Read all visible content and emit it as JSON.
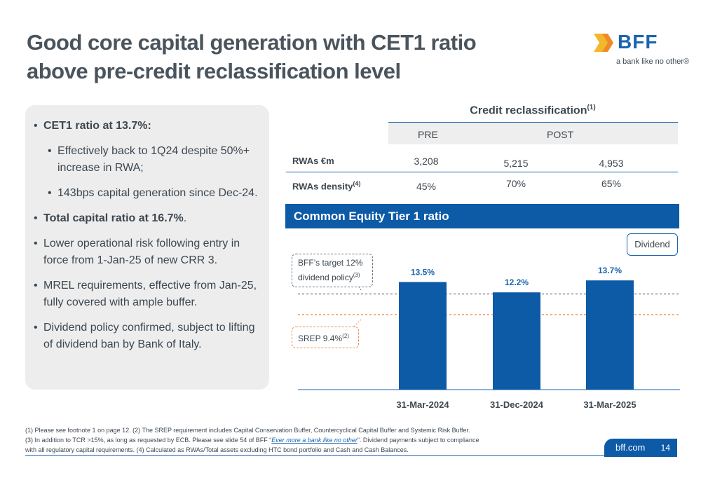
{
  "title_line1": "Good core capital generation with CET1 ratio",
  "title_line2": "above pre-credit reclassification level",
  "logo": {
    "brand": "BFF",
    "tagline": "a bank like no other®"
  },
  "bullets": {
    "b1": "CET1 ratio at 13.7%:",
    "b1a": "Effectively back to 1Q24 despite 50%+ increase in RWA;",
    "b1b": "143bps capital generation since Dec-24.",
    "b2_bold": "Total capital ratio at 16.7%",
    "b2_tail": ".",
    "b3": "Lower operational risk following entry in force from 1-Jan-25 of new CRR 3.",
    "b4": "MREL requirements, effective from Jan-25, fully covered with ample buffer.",
    "b5": "Dividend policy confirmed, subject to lifting of dividend ban by Bank of Italy."
  },
  "table": {
    "title": "Credit reclassification",
    "title_note": "(1)",
    "col_pre": "PRE",
    "col_post": "POST",
    "row1_label": "RWAs €m",
    "row1_values": [
      "3,208",
      "5,215",
      "4,953"
    ],
    "row2_label": "RWAs density",
    "row2_note": "(4)",
    "row2_values": [
      "45%",
      "70%",
      "65%"
    ]
  },
  "section_band": "Common Equity Tier 1 ratio",
  "legend_label": "Dividend",
  "callouts": {
    "target_text": "BFF’s target 12% dividend policy",
    "target_note": "(3)",
    "srep_text": "SREP 9.4%",
    "srep_note": "(2)"
  },
  "chart_data": {
    "type": "bar",
    "title": "Common Equity Tier 1 ratio",
    "categories": [
      "31-Mar-2024",
      "31-Dec-2024",
      "31-Mar-2025"
    ],
    "values": [
      13.5,
      12.2,
      13.7
    ],
    "value_labels": [
      "13.5%",
      "12.2%",
      "13.7%"
    ],
    "reference_lines": [
      {
        "label": "BFF’s target 12% dividend policy",
        "value": 12.0,
        "style": "dashed",
        "color": "#6a7680"
      },
      {
        "label": "SREP 9.4%",
        "value": 9.4,
        "style": "dashed",
        "color": "#ef8a46"
      }
    ],
    "ylim": [
      0,
      16
    ],
    "grid": false,
    "legend_position": "top-right",
    "colors": {
      "bar": "#0d5aa7",
      "label": "#1a64b0"
    }
  },
  "footnotes": {
    "line1": "(1) Please see footnote 1 on page 12.   (2) The SREP requirement includes Capital Conservation Buffer, Countercyclical Capital Buffer and Systemic Risk Buffer.",
    "line2_pre": "(3) In addition to TCR >15%, as long as requested by ECB. Please see slide 54 of BFF “",
    "line2_link": "Ever more a bank like no other",
    "line2_post": "”.  Dividend payments subject to compliance",
    "line3": "with all regulatory capital requirements.  (4) Calculated as RWAs/Total assets excluding HTC bond portfolio and Cash and Cash Balances."
  },
  "footer": {
    "site": "bff.com",
    "page": "14"
  }
}
